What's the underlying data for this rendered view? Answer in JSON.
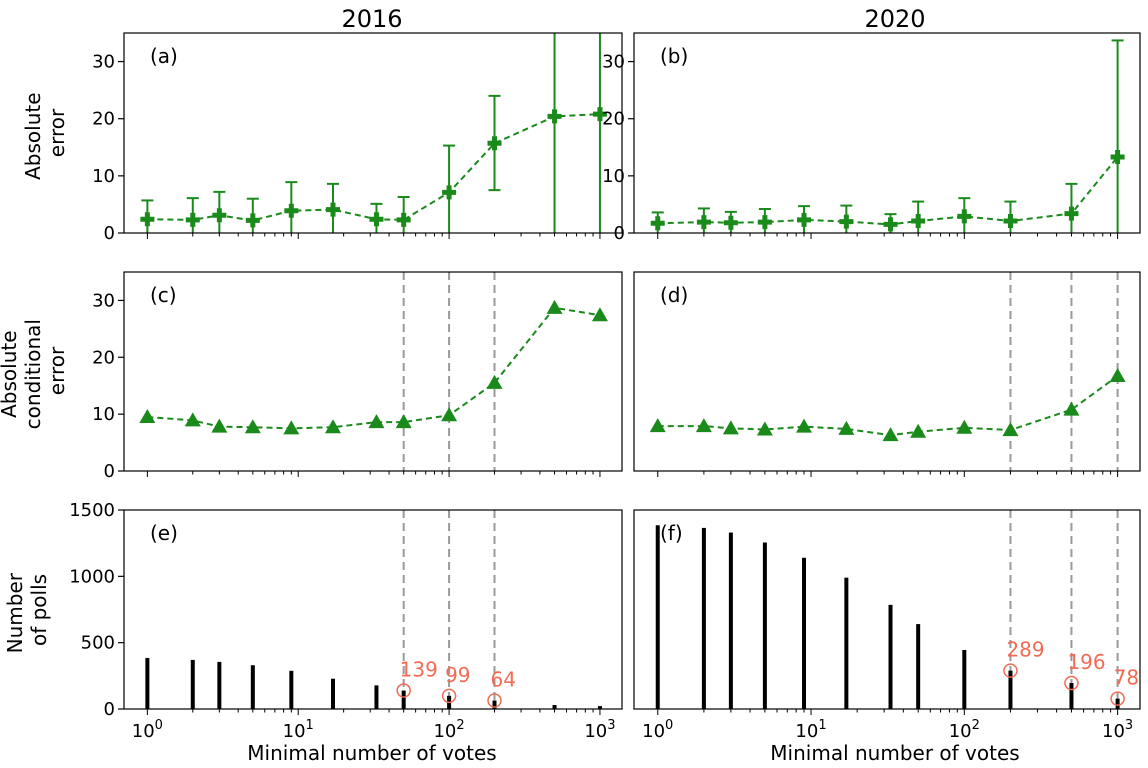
{
  "figure": {
    "column_titles": [
      "2016",
      "2020"
    ],
    "row_ylabels": [
      [
        "Absolute",
        "error"
      ],
      [
        "Absolute",
        "conditional",
        "error"
      ],
      [
        "Number",
        "of polls"
      ]
    ],
    "xlabel": "Minimal number of votes",
    "colors": {
      "series": "#1a8a1a",
      "bars": "#000000",
      "annotation": "#f26b55",
      "guide": "#999999"
    }
  },
  "chart_data": [
    {
      "panel": "(a)",
      "column": "2016",
      "type": "scatter",
      "x_scale": "log",
      "xlim": [
        0.7,
        1400
      ],
      "ylim": [
        0,
        35
      ],
      "yticks": [
        0,
        10,
        20,
        30
      ],
      "marker": "plus",
      "line": "dashed",
      "x": [
        1,
        2,
        3,
        5,
        9,
        17,
        33,
        50,
        100,
        200,
        500,
        1000
      ],
      "y": [
        2.4,
        2.3,
        3.1,
        2.2,
        3.9,
        4.1,
        2.4,
        2.3,
        7.1,
        15.7,
        20.4,
        20.8
      ],
      "err_low": [
        0,
        0,
        0,
        0,
        0,
        0,
        0,
        0,
        0,
        7.5,
        0,
        0
      ],
      "err_high": [
        5.7,
        6.1,
        7.2,
        6.0,
        8.9,
        8.6,
        5.1,
        6.3,
        15.3,
        24.0,
        35,
        35
      ]
    },
    {
      "panel": "(b)",
      "column": "2020",
      "type": "scatter",
      "x_scale": "log",
      "xlim": [
        0.7,
        1400
      ],
      "ylim": [
        0,
        35
      ],
      "yticks": [
        0,
        10,
        20,
        30
      ],
      "marker": "plus",
      "line": "dashed",
      "x": [
        1,
        2,
        3,
        5,
        9,
        17,
        33,
        50,
        100,
        200,
        500,
        1000
      ],
      "y": [
        1.7,
        1.9,
        1.8,
        1.9,
        2.3,
        2.0,
        1.5,
        2.1,
        2.9,
        2.1,
        3.4,
        13.3
      ],
      "err_low": [
        0,
        0,
        0,
        0,
        0,
        0,
        0,
        0,
        0,
        0,
        0,
        0
      ],
      "err_high": [
        3.6,
        4.3,
        3.7,
        4.2,
        4.7,
        4.8,
        3.3,
        5.5,
        6.1,
        5.5,
        8.6,
        33.7
      ]
    },
    {
      "panel": "(c)",
      "column": "2016",
      "type": "scatter",
      "x_scale": "log",
      "xlim": [
        0.7,
        1400
      ],
      "ylim": [
        0,
        35
      ],
      "yticks": [
        0,
        10,
        20,
        30
      ],
      "marker": "triangle",
      "line": "dashed",
      "x": [
        1,
        2,
        3,
        5,
        9,
        17,
        33,
        50,
        100,
        200,
        500,
        1000
      ],
      "y": [
        9.5,
        8.9,
        7.8,
        7.7,
        7.5,
        7.7,
        8.6,
        8.6,
        9.8,
        15.5,
        28.7,
        27.4
      ],
      "vlines": [
        50,
        100,
        200
      ]
    },
    {
      "panel": "(d)",
      "column": "2020",
      "type": "scatter",
      "x_scale": "log",
      "xlim": [
        0.7,
        1400
      ],
      "ylim": [
        0,
        35
      ],
      "yticks": [],
      "marker": "triangle",
      "line": "dashed",
      "x": [
        1,
        2,
        3,
        5,
        9,
        17,
        33,
        50,
        100,
        200,
        500,
        1000
      ],
      "y": [
        7.9,
        7.9,
        7.5,
        7.3,
        7.8,
        7.4,
        6.3,
        6.9,
        7.6,
        7.2,
        10.8,
        16.7
      ],
      "vlines": [
        200,
        500,
        1000
      ]
    },
    {
      "panel": "(e)",
      "column": "2016",
      "type": "bar",
      "x_scale": "log",
      "xlim": [
        0.7,
        1400
      ],
      "ylim": [
        0,
        1500
      ],
      "yticks": [
        0,
        500,
        1000,
        1500
      ],
      "xticks": [
        "10^0",
        "10^1",
        "10^2",
        "10^3"
      ],
      "x": [
        1,
        2,
        3,
        5,
        9,
        17,
        33,
        50,
        100,
        200,
        500,
        1000
      ],
      "values": [
        385,
        370,
        355,
        330,
        288,
        228,
        178,
        139,
        99,
        64,
        30,
        22
      ],
      "vlines": [
        50,
        100,
        200
      ],
      "annotations": [
        {
          "x": 50,
          "value": 139,
          "label": "139"
        },
        {
          "x": 100,
          "value": 99,
          "label": "99"
        },
        {
          "x": 200,
          "value": 64,
          "label": "64"
        }
      ]
    },
    {
      "panel": "(f)",
      "column": "2020",
      "type": "bar",
      "x_scale": "log",
      "xlim": [
        0.7,
        1400
      ],
      "ylim": [
        0,
        1500
      ],
      "yticks": [],
      "xticks": [
        "10^0",
        "10^1",
        "10^2",
        "10^3"
      ],
      "x": [
        1,
        2,
        3,
        5,
        9,
        17,
        33,
        50,
        100,
        200,
        500,
        1000
      ],
      "values": [
        1385,
        1365,
        1330,
        1255,
        1140,
        990,
        785,
        640,
        445,
        289,
        196,
        78
      ],
      "vlines": [
        200,
        500,
        1000
      ],
      "annotations": [
        {
          "x": 200,
          "value": 289,
          "label": "289"
        },
        {
          "x": 500,
          "value": 196,
          "label": "196"
        },
        {
          "x": 1000,
          "value": 78,
          "label": "78"
        }
      ]
    }
  ]
}
